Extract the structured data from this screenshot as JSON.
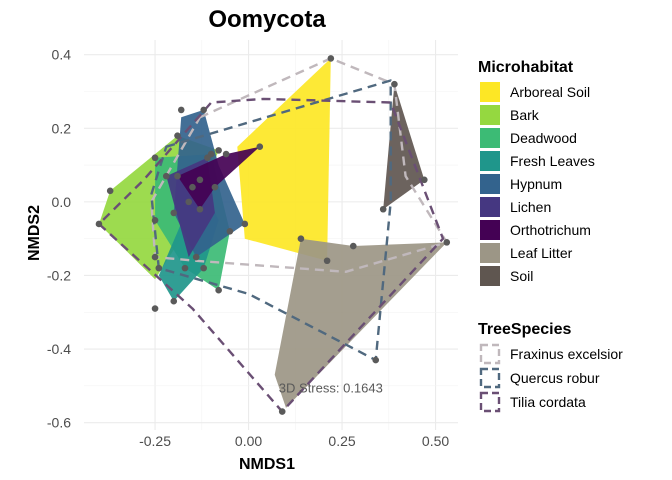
{
  "chart_data": {
    "type": "scatter",
    "title": "Oomycota",
    "xlabel": "NMDS1",
    "ylabel": "NMDS2",
    "xlim": [
      -0.44,
      0.56
    ],
    "ylim": [
      -0.62,
      0.44
    ],
    "x_ticks": [
      -0.25,
      0.0,
      0.25,
      0.5
    ],
    "x_tick_labels": [
      "-0.25",
      "0.00",
      "0.25",
      "0.50"
    ],
    "y_ticks": [
      -0.6,
      -0.4,
      -0.2,
      0.0,
      0.2,
      0.4
    ],
    "y_tick_labels": [
      "-0.6",
      "-0.4",
      "-0.2",
      "0.0",
      "0.2",
      "0.4"
    ],
    "grid": true,
    "annotation": {
      "text": "3D Stress: 0.1643",
      "x": 0.22,
      "y": -0.505
    },
    "legend_position": "right",
    "microhabitat_legend": {
      "title": "Microhabitat",
      "items": [
        {
          "label": "Arboreal Soil",
          "color": "#FDE725"
        },
        {
          "label": "Bark",
          "color": "#95D840"
        },
        {
          "label": "Deadwood",
          "color": "#3CBB75"
        },
        {
          "label": "Fresh Leaves",
          "color": "#1F968B"
        },
        {
          "label": "Hypnum",
          "color": "#33638D"
        },
        {
          "label": "Lichen",
          "color": "#453781"
        },
        {
          "label": "Orthotrichum",
          "color": "#440154"
        },
        {
          "label": "Leaf Litter",
          "color": "#9C9686"
        },
        {
          "label": "Soil",
          "color": "#5F5650"
        }
      ]
    },
    "tree_legend": {
      "title": "TreeSpecies",
      "items": [
        {
          "label": "Fraxinus excelsior",
          "color": "#C0B8BC"
        },
        {
          "label": "Quercus robur",
          "color": "#50697F"
        },
        {
          "label": "Tilia cordata",
          "color": "#6A4F74"
        }
      ]
    },
    "hulls": [
      {
        "group": "Arboreal Soil",
        "polygon": [
          [
            -0.03,
            0.15
          ],
          [
            0.22,
            0.39
          ],
          [
            0.21,
            -0.16
          ],
          [
            -0.01,
            -0.1
          ]
        ]
      },
      {
        "group": "Bark",
        "polygon": [
          [
            -0.4,
            -0.06
          ],
          [
            -0.37,
            0.03
          ],
          [
            -0.19,
            0.18
          ],
          [
            -0.08,
            0.14
          ],
          [
            -0.15,
            -0.05
          ],
          [
            -0.25,
            -0.21
          ]
        ]
      },
      {
        "group": "Deadwood",
        "polygon": [
          [
            -0.25,
            0.12
          ],
          [
            -0.1,
            0.13
          ],
          [
            -0.05,
            -0.08
          ],
          [
            -0.08,
            -0.24
          ],
          [
            -0.17,
            -0.18
          ],
          [
            -0.25,
            -0.05
          ]
        ]
      },
      {
        "group": "Fresh Leaves",
        "polygon": [
          [
            -0.13,
            0.06
          ],
          [
            -0.08,
            -0.05
          ],
          [
            -0.12,
            -0.18
          ],
          [
            -0.2,
            -0.27
          ],
          [
            -0.24,
            -0.2
          ]
        ]
      },
      {
        "group": "Hypnum",
        "polygon": [
          [
            -0.18,
            0.23
          ],
          [
            -0.12,
            0.25
          ],
          [
            -0.08,
            0.1
          ],
          [
            -0.01,
            -0.06
          ],
          [
            -0.14,
            -0.15
          ],
          [
            -0.2,
            -0.03
          ]
        ]
      },
      {
        "group": "Lichen",
        "polygon": [
          [
            -0.22,
            0.07
          ],
          [
            -0.11,
            0.12
          ],
          [
            -0.09,
            -0.03
          ],
          [
            -0.16,
            -0.15
          ]
        ]
      },
      {
        "group": "Orthotrichum",
        "polygon": [
          [
            -0.19,
            0.07
          ],
          [
            -0.06,
            0.13
          ],
          [
            0.03,
            0.15
          ],
          [
            -0.09,
            0.04
          ],
          [
            -0.13,
            -0.02
          ]
        ]
      },
      {
        "group": "Leaf Litter",
        "polygon": [
          [
            0.14,
            -0.1
          ],
          [
            0.28,
            -0.12
          ],
          [
            0.53,
            -0.11
          ],
          [
            0.1,
            -0.56
          ],
          [
            0.07,
            -0.47
          ]
        ]
      },
      {
        "group": "Soil",
        "polygon": [
          [
            0.39,
            0.32
          ],
          [
            0.47,
            0.06
          ],
          [
            0.36,
            -0.02
          ]
        ]
      }
    ],
    "tree_hulls": [
      {
        "group": "Fraxinus excelsior",
        "polygon": [
          [
            -0.13,
            0.23
          ],
          [
            0.22,
            0.39
          ],
          [
            0.39,
            0.32
          ],
          [
            0.42,
            0.07
          ],
          [
            0.53,
            -0.11
          ],
          [
            0.26,
            -0.19
          ],
          [
            -0.14,
            -0.16
          ],
          [
            -0.25,
            -0.15
          ],
          [
            -0.26,
            0.0
          ]
        ]
      },
      {
        "group": "Quercus robur",
        "polygon": [
          [
            -0.22,
            0.15
          ],
          [
            0.38,
            0.33
          ],
          [
            0.38,
            0.0
          ],
          [
            0.34,
            -0.43
          ],
          [
            0.0,
            -0.25
          ],
          [
            -0.24,
            -0.18
          ],
          [
            -0.26,
            0.02
          ]
        ]
      },
      {
        "group": "Tilia cordata",
        "polygon": [
          [
            -0.4,
            -0.06
          ],
          [
            -0.15,
            -0.29
          ],
          [
            0.09,
            -0.57
          ],
          [
            0.52,
            -0.1
          ],
          [
            0.38,
            0.27
          ],
          [
            0.04,
            0.28
          ],
          [
            -0.1,
            0.27
          ],
          [
            -0.28,
            0.06
          ]
        ]
      }
    ],
    "points": [
      [
        -0.4,
        -0.06
      ],
      [
        -0.37,
        0.03
      ],
      [
        -0.19,
        0.18
      ],
      [
        -0.25,
        0.12
      ],
      [
        -0.18,
        0.25
      ],
      [
        -0.12,
        0.25
      ],
      [
        -0.08,
        0.14
      ],
      [
        -0.1,
        0.13
      ],
      [
        0.03,
        0.15
      ],
      [
        -0.06,
        0.13
      ],
      [
        -0.09,
        0.04
      ],
      [
        -0.13,
        0.06
      ],
      [
        -0.19,
        0.07
      ],
      [
        -0.22,
        0.07
      ],
      [
        -0.15,
        0.04
      ],
      [
        -0.11,
        0.12
      ],
      [
        -0.13,
        -0.02
      ],
      [
        -0.16,
        0.0
      ],
      [
        -0.2,
        -0.03
      ],
      [
        -0.25,
        -0.05
      ],
      [
        -0.24,
        -0.18
      ],
      [
        -0.17,
        -0.18
      ],
      [
        -0.14,
        -0.15
      ],
      [
        -0.12,
        -0.18
      ],
      [
        -0.2,
        -0.27
      ],
      [
        -0.25,
        -0.29
      ],
      [
        -0.08,
        -0.24
      ],
      [
        -0.05,
        -0.08
      ],
      [
        -0.01,
        -0.06
      ],
      [
        0.22,
        0.39
      ],
      [
        0.21,
        -0.16
      ],
      [
        0.14,
        -0.1
      ],
      [
        0.28,
        -0.12
      ],
      [
        0.53,
        -0.11
      ],
      [
        0.36,
        -0.02
      ],
      [
        0.39,
        0.32
      ],
      [
        0.47,
        0.06
      ],
      [
        0.34,
        -0.43
      ],
      [
        0.09,
        -0.57
      ],
      [
        -0.25,
        -0.15
      ]
    ]
  }
}
